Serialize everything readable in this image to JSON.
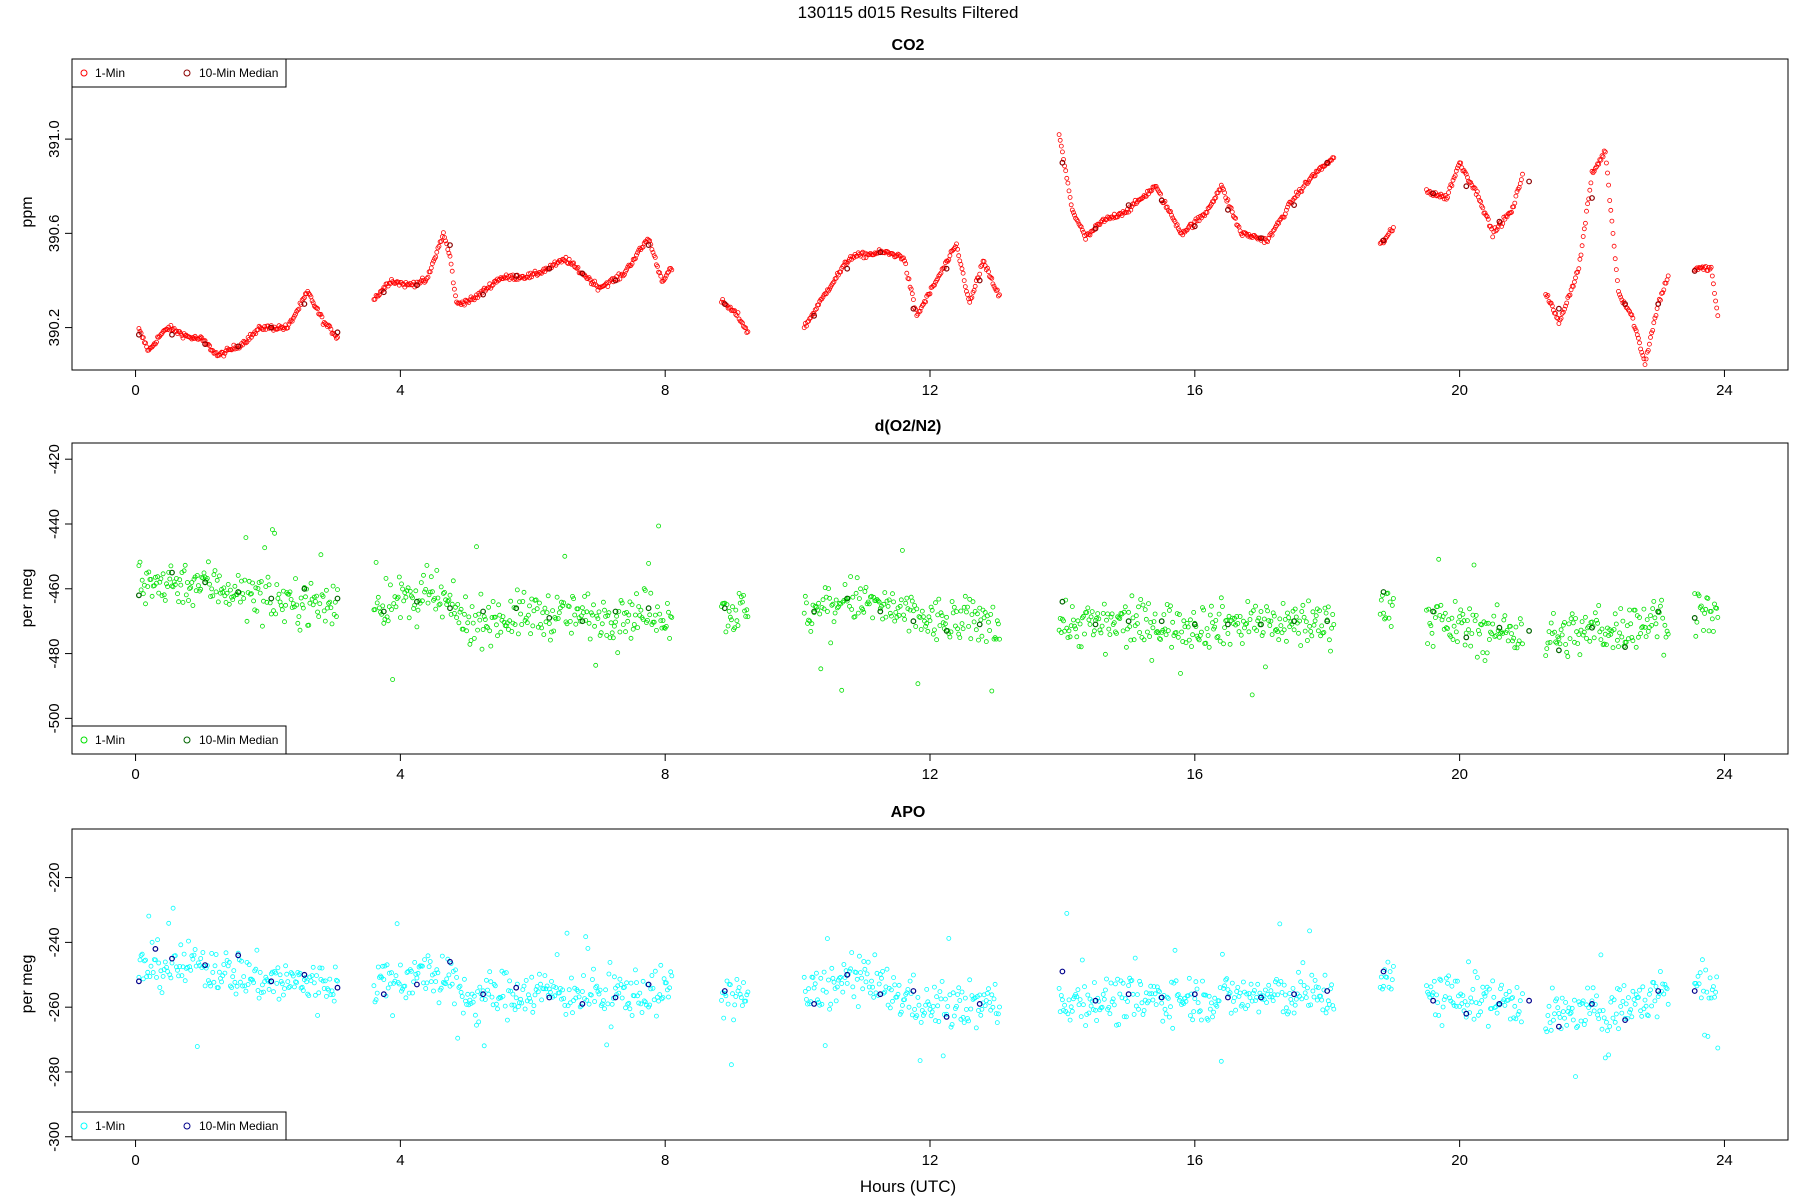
{
  "figure": {
    "title": "130115   d015   Results Filtered",
    "xlabel": "Hours (UTC)"
  },
  "chart_data": [
    {
      "type": "scatter",
      "title": "CO2",
      "ylabel": "ppm",
      "xlim": [
        -0.96,
        24.96
      ],
      "ylim": [
        390.02,
        391.34
      ],
      "xticks": [
        0,
        4,
        8,
        12,
        16,
        20,
        24
      ],
      "yticks": [
        390.2,
        390.6,
        391.0
      ],
      "ytick_labels": [
        "390.2",
        "390.6",
        "391.0"
      ],
      "legend_position": "top-left",
      "legend": [
        "1-Min",
        "10-Min Median"
      ],
      "colors": {
        "one_min": "#ff0000",
        "median": "#8b0000"
      },
      "one_min_anchors": [
        [
          0.05,
          390.19
        ],
        [
          0.2,
          390.1
        ],
        [
          0.35,
          390.16
        ],
        [
          0.5,
          390.2
        ],
        [
          0.8,
          390.16
        ],
        [
          1.0,
          390.15
        ],
        [
          1.25,
          390.08
        ],
        [
          1.6,
          390.13
        ],
        [
          1.9,
          390.2
        ],
        [
          2.3,
          390.2
        ],
        [
          2.6,
          390.35
        ],
        [
          2.85,
          390.22
        ],
        [
          3.05,
          390.16
        ],
        [
          3.6,
          390.32
        ],
        [
          3.85,
          390.4
        ],
        [
          4.1,
          390.38
        ],
        [
          4.4,
          390.4
        ],
        [
          4.65,
          390.6
        ],
        [
          4.75,
          390.5
        ],
        [
          4.85,
          390.3
        ],
        [
          5.1,
          390.32
        ],
        [
          5.5,
          390.41
        ],
        [
          6.0,
          390.42
        ],
        [
          6.5,
          390.49
        ],
        [
          7.0,
          390.37
        ],
        [
          7.35,
          390.42
        ],
        [
          7.75,
          390.58
        ],
        [
          7.95,
          390.4
        ],
        [
          8.1,
          390.45
        ],
        [
          8.9,
          390.3
        ],
        [
          9.1,
          390.25
        ],
        [
          9.25,
          390.18
        ],
        [
          10.1,
          390.2
        ],
        [
          10.5,
          390.38
        ],
        [
          10.8,
          390.5
        ],
        [
          11.3,
          390.52
        ],
        [
          11.6,
          390.5
        ],
        [
          11.8,
          390.25
        ],
        [
          12.1,
          390.4
        ],
        [
          12.4,
          390.55
        ],
        [
          12.6,
          390.3
        ],
        [
          12.8,
          390.48
        ],
        [
          13.05,
          390.33
        ],
        [
          13.95,
          391.02
        ],
        [
          14.15,
          390.7
        ],
        [
          14.35,
          390.58
        ],
        [
          14.6,
          390.65
        ],
        [
          15.0,
          390.7
        ],
        [
          15.4,
          390.8
        ],
        [
          15.8,
          390.6
        ],
        [
          16.15,
          390.68
        ],
        [
          16.4,
          390.8
        ],
        [
          16.7,
          390.6
        ],
        [
          17.1,
          390.57
        ],
        [
          17.5,
          390.75
        ],
        [
          17.8,
          390.85
        ],
        [
          18.1,
          390.92
        ],
        [
          18.8,
          390.55
        ],
        [
          19.0,
          390.62
        ],
        [
          19.5,
          390.78
        ],
        [
          19.8,
          390.75
        ],
        [
          20.0,
          390.9
        ],
        [
          20.3,
          390.75
        ],
        [
          20.5,
          390.6
        ],
        [
          20.8,
          390.7
        ],
        [
          20.95,
          390.85
        ],
        [
          21.3,
          390.35
        ],
        [
          21.5,
          390.22
        ],
        [
          21.8,
          390.45
        ],
        [
          22.0,
          390.85
        ],
        [
          22.2,
          390.95
        ],
        [
          22.4,
          390.35
        ],
        [
          22.6,
          390.25
        ],
        [
          22.8,
          390.05
        ],
        [
          23.0,
          390.3
        ],
        [
          23.15,
          390.42
        ],
        [
          23.55,
          390.45
        ],
        [
          23.8,
          390.45
        ],
        [
          23.9,
          390.25
        ]
      ],
      "median_points": [
        [
          0.05,
          390.17
        ],
        [
          0.55,
          390.17
        ],
        [
          1.05,
          390.13
        ],
        [
          1.55,
          390.12
        ],
        [
          2.05,
          390.2
        ],
        [
          2.55,
          390.3
        ],
        [
          3.05,
          390.18
        ],
        [
          3.75,
          390.35
        ],
        [
          4.25,
          390.38
        ],
        [
          4.75,
          390.55
        ],
        [
          5.25,
          390.34
        ],
        [
          5.75,
          390.42
        ],
        [
          6.25,
          390.45
        ],
        [
          6.75,
          390.43
        ],
        [
          7.25,
          390.4
        ],
        [
          7.75,
          390.55
        ],
        [
          8.9,
          390.3
        ],
        [
          10.25,
          390.25
        ],
        [
          10.75,
          390.45
        ],
        [
          11.25,
          390.52
        ],
        [
          11.75,
          390.28
        ],
        [
          12.25,
          390.45
        ],
        [
          12.75,
          390.4
        ],
        [
          14.0,
          390.9
        ],
        [
          14.5,
          390.62
        ],
        [
          15.0,
          390.72
        ],
        [
          15.5,
          390.74
        ],
        [
          16.0,
          390.63
        ],
        [
          16.5,
          390.7
        ],
        [
          17.0,
          390.58
        ],
        [
          17.5,
          390.72
        ],
        [
          18.0,
          390.9
        ],
        [
          18.85,
          390.57
        ],
        [
          19.6,
          390.77
        ],
        [
          20.1,
          390.8
        ],
        [
          20.6,
          390.65
        ],
        [
          21.05,
          390.82
        ],
        [
          21.5,
          390.28
        ],
        [
          22.0,
          390.75
        ],
        [
          22.5,
          390.3
        ],
        [
          23.0,
          390.3
        ],
        [
          23.55,
          390.44
        ]
      ]
    },
    {
      "type": "scatter",
      "title": "d(O2/N2)",
      "ylabel": "per meg",
      "xlim": [
        -0.96,
        24.96
      ],
      "ylim": [
        -511,
        -415
      ],
      "xticks": [
        0,
        4,
        8,
        12,
        16,
        20,
        24
      ],
      "yticks": [
        -500,
        -480,
        -460,
        -440,
        -420
      ],
      "ytick_labels": [
        "-500",
        "-480",
        "-460",
        "-440",
        "-420"
      ],
      "legend_position": "bottom-left",
      "legend": [
        "1-Min",
        "10-Min Median"
      ],
      "colors": {
        "one_min": "#00e000",
        "median": "#006400"
      },
      "one_min_anchors": [
        [
          0.05,
          -458
        ],
        [
          1.0,
          -458
        ],
        [
          2.0,
          -463
        ],
        [
          3.05,
          -465
        ],
        [
          3.6,
          -465
        ],
        [
          4.5,
          -462
        ],
        [
          5.0,
          -470
        ],
        [
          6.0,
          -468
        ],
        [
          7.0,
          -468
        ],
        [
          8.1,
          -467
        ],
        [
          8.9,
          -467
        ],
        [
          9.25,
          -467
        ],
        [
          10.1,
          -468
        ],
        [
          10.8,
          -463
        ],
        [
          11.5,
          -467
        ],
        [
          12.0,
          -470
        ],
        [
          13.05,
          -470
        ],
        [
          13.95,
          -471
        ],
        [
          16.0,
          -471
        ],
        [
          18.1,
          -470
        ],
        [
          18.8,
          -465
        ],
        [
          19.0,
          -465
        ],
        [
          19.5,
          -470
        ],
        [
          20.5,
          -473
        ],
        [
          21.0,
          -473
        ],
        [
          21.3,
          -475
        ],
        [
          22.5,
          -472
        ],
        [
          23.15,
          -468
        ],
        [
          23.55,
          -465
        ],
        [
          23.9,
          -470
        ]
      ],
      "median_points": [
        [
          0.05,
          -462
        ],
        [
          0.55,
          -455
        ],
        [
          1.05,
          -458
        ],
        [
          1.55,
          -461
        ],
        [
          2.05,
          -463
        ],
        [
          2.55,
          -460
        ],
        [
          3.05,
          -463
        ],
        [
          3.75,
          -467
        ],
        [
          4.25,
          -464
        ],
        [
          4.75,
          -466
        ],
        [
          5.25,
          -467
        ],
        [
          5.75,
          -466
        ],
        [
          6.25,
          -469
        ],
        [
          6.75,
          -470
        ],
        [
          7.25,
          -467
        ],
        [
          7.75,
          -466
        ],
        [
          8.9,
          -466
        ],
        [
          10.25,
          -467
        ],
        [
          10.75,
          -463
        ],
        [
          11.25,
          -467
        ],
        [
          11.75,
          -470
        ],
        [
          12.25,
          -473
        ],
        [
          12.75,
          -471
        ],
        [
          14.0,
          -464
        ],
        [
          14.5,
          -471
        ],
        [
          15.0,
          -470
        ],
        [
          15.5,
          -470
        ],
        [
          16.0,
          -471
        ],
        [
          16.5,
          -471
        ],
        [
          17.0,
          -471
        ],
        [
          17.5,
          -470
        ],
        [
          18.0,
          -470
        ],
        [
          18.85,
          -461
        ],
        [
          19.6,
          -467
        ],
        [
          20.1,
          -475
        ],
        [
          20.6,
          -472
        ],
        [
          21.05,
          -473
        ],
        [
          21.5,
          -479
        ],
        [
          22.0,
          -472
        ],
        [
          22.5,
          -478
        ],
        [
          23.0,
          -467
        ],
        [
          23.55,
          -469
        ]
      ]
    },
    {
      "type": "scatter",
      "title": "APO",
      "ylabel": "per meg",
      "xlim": [
        -0.96,
        24.96
      ],
      "ylim": [
        -301,
        -205
      ],
      "xticks": [
        0,
        4,
        8,
        12,
        16,
        20,
        24
      ],
      "yticks": [
        -300,
        -280,
        -260,
        -240,
        -220
      ],
      "ytick_labels": [
        "-300",
        "-280",
        "-260",
        "-240",
        "-220"
      ],
      "legend_position": "bottom-left",
      "legend": [
        "1-Min",
        "10-Min Median"
      ],
      "colors": {
        "one_min": "#00ffff",
        "median": "#00008b"
      },
      "one_min_anchors": [
        [
          0.05,
          -248
        ],
        [
          1.0,
          -247
        ],
        [
          2.0,
          -252
        ],
        [
          3.05,
          -253
        ],
        [
          3.6,
          -252
        ],
        [
          4.5,
          -250
        ],
        [
          5.0,
          -257
        ],
        [
          6.0,
          -255
        ],
        [
          7.0,
          -256
        ],
        [
          8.1,
          -255
        ],
        [
          8.9,
          -256
        ],
        [
          9.25,
          -256
        ],
        [
          10.1,
          -257
        ],
        [
          10.8,
          -251
        ],
        [
          11.5,
          -256
        ],
        [
          12.0,
          -260
        ],
        [
          13.05,
          -259
        ],
        [
          13.95,
          -258
        ],
        [
          16.0,
          -257
        ],
        [
          18.1,
          -256
        ],
        [
          18.8,
          -252
        ],
        [
          19.0,
          -252
        ],
        [
          19.5,
          -256
        ],
        [
          20.5,
          -258
        ],
        [
          21.0,
          -258
        ],
        [
          21.3,
          -263
        ],
        [
          22.5,
          -260
        ],
        [
          23.15,
          -255
        ],
        [
          23.55,
          -250
        ],
        [
          23.9,
          -258
        ]
      ],
      "median_points": [
        [
          0.05,
          -252
        ],
        [
          0.3,
          -242
        ],
        [
          0.55,
          -245
        ],
        [
          1.05,
          -247
        ],
        [
          1.55,
          -244
        ],
        [
          2.05,
          -252
        ],
        [
          2.55,
          -250
        ],
        [
          3.05,
          -254
        ],
        [
          3.75,
          -256
        ],
        [
          4.25,
          -253
        ],
        [
          4.75,
          -246
        ],
        [
          5.25,
          -256
        ],
        [
          5.75,
          -254
        ],
        [
          6.25,
          -257
        ],
        [
          6.75,
          -259
        ],
        [
          7.25,
          -257
        ],
        [
          7.75,
          -253
        ],
        [
          8.9,
          -255
        ],
        [
          10.25,
          -259
        ],
        [
          10.75,
          -250
        ],
        [
          11.25,
          -256
        ],
        [
          11.75,
          -255
        ],
        [
          12.25,
          -263
        ],
        [
          12.75,
          -259
        ],
        [
          14.0,
          -249
        ],
        [
          14.5,
          -258
        ],
        [
          15.0,
          -256
        ],
        [
          15.5,
          -257
        ],
        [
          16.0,
          -256
        ],
        [
          16.5,
          -257
        ],
        [
          17.0,
          -257
        ],
        [
          17.5,
          -256
        ],
        [
          18.0,
          -255
        ],
        [
          18.85,
          -249
        ],
        [
          19.6,
          -258
        ],
        [
          20.1,
          -262
        ],
        [
          20.6,
          -259
        ],
        [
          21.05,
          -258
        ],
        [
          21.5,
          -266
        ],
        [
          22.0,
          -259
        ],
        [
          22.5,
          -264
        ],
        [
          23.0,
          -255
        ],
        [
          23.55,
          -255
        ]
      ]
    }
  ]
}
